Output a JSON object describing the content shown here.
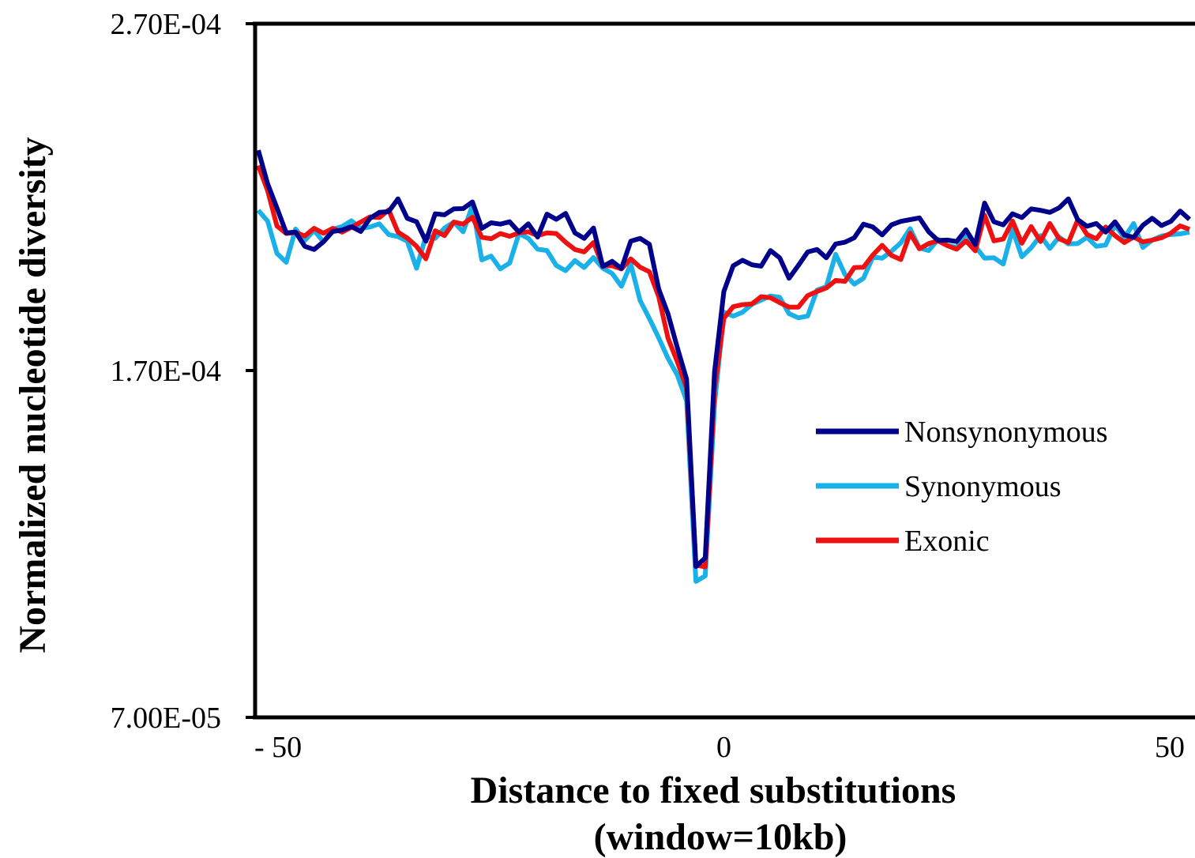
{
  "chart_data": {
    "type": "line",
    "xlabel_line1": "Distance to fixed substitutions",
    "xlabel_line2": "(window=10kb)",
    "ylabel": "Normalized nucleotide diversity",
    "xlim": [
      -50,
      50
    ],
    "ylim": [
      7e-05,
      0.00027
    ],
    "x_ticks": [
      -50,
      0,
      50
    ],
    "x_tick_labels": [
      "- 50",
      "0",
      "50"
    ],
    "y_ticks": [
      7e-05,
      0.00017,
      0.00027
    ],
    "y_tick_labels": [
      "7.00E-05",
      "1.70E-04",
      "2.70E-04"
    ],
    "grid": false,
    "legend": "right",
    "x": [
      -50,
      -49,
      -48,
      -47,
      -46,
      -45,
      -44,
      -43,
      -42,
      -41,
      -40,
      -39,
      -38,
      -37,
      -36,
      -35,
      -34,
      -33,
      -32,
      -31,
      -30,
      -29,
      -28,
      -27,
      -26,
      -25,
      -24,
      -23,
      -22,
      -21,
      -20,
      -19,
      -18,
      -17,
      -16,
      -15,
      -14,
      -13,
      -12,
      -11,
      -10,
      -9,
      -8,
      -7,
      -6,
      -5,
      -4,
      -3,
      -2,
      -1,
      0,
      1,
      2,
      3,
      4,
      5,
      6,
      7,
      8,
      9,
      10,
      11,
      12,
      13,
      14,
      15,
      16,
      17,
      18,
      19,
      20,
      21,
      22,
      23,
      24,
      25,
      26,
      27,
      28,
      29,
      30,
      31,
      32,
      33,
      34,
      35,
      36,
      37,
      38,
      39,
      40,
      41,
      42,
      43,
      44,
      45,
      46,
      47,
      48,
      49,
      50
    ],
    "series": [
      {
        "name": "Nonsynonymous",
        "color": "#00008b",
        "values": [
          0.0002335,
          0.0002239,
          0.0002169,
          0.0002097,
          0.0002099,
          0.0002058,
          0.0002049,
          0.0002071,
          0.0002101,
          0.0002105,
          0.0002115,
          0.0002101,
          0.0002139,
          0.0002156,
          0.0002158,
          0.0002195,
          0.0002139,
          0.0002129,
          0.0002073,
          0.0002152,
          0.0002149,
          0.0002166,
          0.0002167,
          0.0002186,
          0.000211,
          0.0002126,
          0.0002122,
          0.0002129,
          0.0002099,
          0.0002123,
          0.0002085,
          0.0002151,
          0.0002136,
          0.0002153,
          0.0002097,
          0.0002081,
          0.0002111,
          0.0002,
          0.0002015,
          0.0001994,
          0.0002073,
          0.0002081,
          0.0002064,
          0.0001935,
          0.0001863,
          0.0001766,
          0.0001675,
          0.0001135,
          0.000116,
          0.0001697,
          0.0001928,
          0.0002002,
          0.0002018,
          0.0002005,
          0.0002001,
          0.0002046,
          0.0002025,
          0.0001966,
          0.0002003,
          0.0002042,
          0.0002049,
          0.0002025,
          0.0002065,
          0.000207,
          0.0002083,
          0.0002122,
          0.0002114,
          0.0002091,
          0.000212,
          0.000213,
          0.0002135,
          0.000214,
          0.00021,
          0.0002075,
          0.0002076,
          0.0002072,
          0.0002106,
          0.0002063,
          0.0002183,
          0.0002129,
          0.000212,
          0.0002152,
          0.0002141,
          0.0002166,
          0.0002162,
          0.0002156,
          0.0002169,
          0.0002195,
          0.0002135,
          0.0002116,
          0.0002124,
          0.0002099,
          0.0002129,
          0.0002091,
          0.0002084,
          0.0002119,
          0.0002139,
          0.0002118,
          0.000213,
          0.000216,
          0.0002136
        ]
      },
      {
        "name": "Synonymous",
        "color": "#1ab0e8",
        "values": [
          0.0002162,
          0.0002131,
          0.0002038,
          0.0002012,
          0.0002108,
          0.0002075,
          0.0002104,
          0.0002071,
          0.0002107,
          0.0002115,
          0.0002132,
          0.000211,
          0.0002114,
          0.0002123,
          0.0002092,
          0.0002086,
          0.0002073,
          0.0001995,
          0.0002087,
          0.0002081,
          0.0002111,
          0.0002128,
          0.00021,
          0.0002176,
          0.0002019,
          0.000203,
          0.0001993,
          0.000201,
          0.0002095,
          0.0002081,
          0.000205,
          0.0002046,
          0.0002003,
          0.0001988,
          0.0002017,
          0.0001997,
          0.0002026,
          0.0001995,
          0.000198,
          0.0001943,
          0.0002007,
          0.0001902,
          0.000185,
          0.0001794,
          0.0001735,
          0.0001687,
          0.0001613,
          0.0001092,
          0.0001108,
          0.0001602,
          0.0001868,
          0.0001857,
          0.0001868,
          0.0001891,
          0.0001903,
          0.0001915,
          0.0001911,
          0.0001864,
          0.0001852,
          0.0001857,
          0.0001932,
          0.0001942,
          0.0002035,
          0.0001977,
          0.0001949,
          0.0001966,
          0.0002027,
          0.0002024,
          0.0002044,
          0.0002068,
          0.0002109,
          0.0002053,
          0.0002046,
          0.0002078,
          0.0002061,
          0.0002055,
          0.0002096,
          0.0002058,
          0.0002024,
          0.0002025,
          0.0002007,
          0.0002106,
          0.0002028,
          0.0002054,
          0.0002089,
          0.0002052,
          0.0002085,
          0.0002065,
          0.0002066,
          0.0002084,
          0.0002058,
          0.0002062,
          0.000212,
          0.0002083,
          0.0002124,
          0.0002055,
          0.0002076,
          0.0002088,
          0.0002092,
          0.0002094,
          0.0002099
        ]
      },
      {
        "name": "Exonic",
        "color": "#ee1111",
        "values": [
          0.0002291,
          0.0002219,
          0.0002117,
          0.0002095,
          0.0002098,
          0.0002088,
          0.000211,
          0.0002096,
          0.000211,
          0.0002099,
          0.0002113,
          0.0002128,
          0.0002143,
          0.0002141,
          0.0002163,
          0.0002099,
          0.0002082,
          0.0002058,
          0.0002022,
          0.0002103,
          0.0002089,
          0.0002128,
          0.0002122,
          0.0002142,
          0.0002084,
          0.000208,
          0.0002095,
          0.0002087,
          0.0002097,
          0.00021,
          0.0002089,
          0.0002097,
          0.0002095,
          0.000207,
          0.0002049,
          0.0002042,
          0.0002069,
          0.0002002,
          0.0002002,
          0.0001993,
          0.0002022,
          0.0001998,
          0.0001985,
          0.0001913,
          0.0001793,
          0.0001725,
          0.000165,
          0.0001139,
          0.0001134,
          0.0001647,
          0.0001851,
          0.0001884,
          0.000189,
          0.0001892,
          0.0001913,
          0.000191,
          0.0001896,
          0.0001883,
          0.0001883,
          0.0001916,
          0.0001928,
          0.0001938,
          0.000196,
          0.0001957,
          0.0001997,
          0.0001998,
          0.0002033,
          0.0002061,
          0.0002032,
          0.000202,
          0.0002096,
          0.0002051,
          0.0002066,
          0.0002074,
          0.000206,
          0.000205,
          0.0002074,
          0.0002045,
          0.0002148,
          0.0002074,
          0.0002079,
          0.0002131,
          0.0002067,
          0.0002115,
          0.0002072,
          0.0002124,
          0.000208,
          0.0002069,
          0.0002134,
          0.0002092,
          0.000208,
          0.0002114,
          0.0002089,
          0.0002069,
          0.0002085,
          0.0002071,
          0.0002076,
          0.0002083,
          0.0002096,
          0.0002117,
          0.0002107
        ]
      }
    ]
  }
}
